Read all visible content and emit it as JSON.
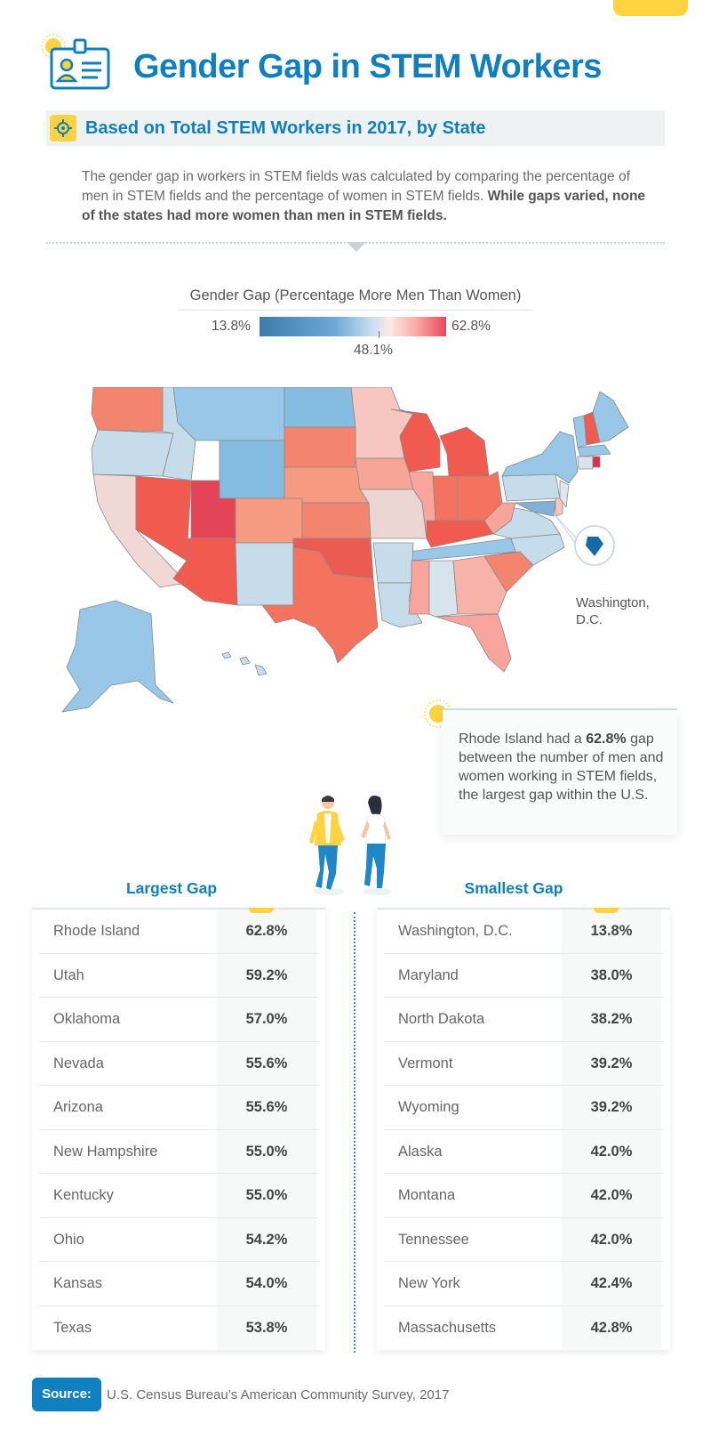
{
  "header": {
    "title": "Gender Gap in STEM Workers",
    "subtitle": "Based on Total STEM Workers in 2017, by State"
  },
  "intro": {
    "text": "The gender gap in workers in STEM fields was calculated by comparing the percentage of men in STEM fields and the percentage of women in STEM fields.",
    "bold_text": "While gaps varied, none of the states had more women than men in STEM fields."
  },
  "legend": {
    "title": "Gender Gap (Percentage More Men Than Women)",
    "min_label": "13.8%",
    "max_label": "62.8%",
    "mid_label": "48.1%"
  },
  "map": {
    "dc_label": "Washington, D.C."
  },
  "callout": {
    "prefix": "Rhode Island had a",
    "highlight": "62.8%",
    "suffix": "gap between the number of men and women working in STEM fields, the largest gap within the U.S."
  },
  "colors": {
    "accent": "#0f7fc0",
    "yellow": "#ffd23f",
    "scale_low": "#3d7bab",
    "scale_mid": "#fde8e6",
    "scale_high": "#e84660"
  },
  "chart_data": [
    {
      "type": "table",
      "title": "Largest Gap",
      "rows": [
        {
          "state": "Rhode Island",
          "value": "62.8%"
        },
        {
          "state": "Utah",
          "value": "59.2%"
        },
        {
          "state": "Oklahoma",
          "value": "57.0%"
        },
        {
          "state": "Nevada",
          "value": "55.6%"
        },
        {
          "state": "Arizona",
          "value": "55.6%"
        },
        {
          "state": "New Hampshire",
          "value": "55.0%"
        },
        {
          "state": "Kentucky",
          "value": "55.0%"
        },
        {
          "state": "Ohio",
          "value": "54.2%"
        },
        {
          "state": "Kansas",
          "value": "54.0%"
        },
        {
          "state": "Texas",
          "value": "53.8%"
        }
      ]
    },
    {
      "type": "table",
      "title": "Smallest Gap",
      "rows": [
        {
          "state": "Washington, D.C.",
          "value": "13.8%"
        },
        {
          "state": "Maryland",
          "value": "38.0%"
        },
        {
          "state": "North Dakota",
          "value": "38.2%"
        },
        {
          "state": "Vermont",
          "value": "39.2%"
        },
        {
          "state": "Wyoming",
          "value": "39.2%"
        },
        {
          "state": "Alaska",
          "value": "42.0%"
        },
        {
          "state": "Montana",
          "value": "42.0%"
        },
        {
          "state": "Tennessee",
          "value": "42.0%"
        },
        {
          "state": "New York",
          "value": "42.4%"
        },
        {
          "state": "Massachusetts",
          "value": "42.8%"
        }
      ]
    }
  ],
  "source": {
    "badge": "Source:",
    "text": "U.S. Census Bureau’s American Community Survey, 2017"
  }
}
